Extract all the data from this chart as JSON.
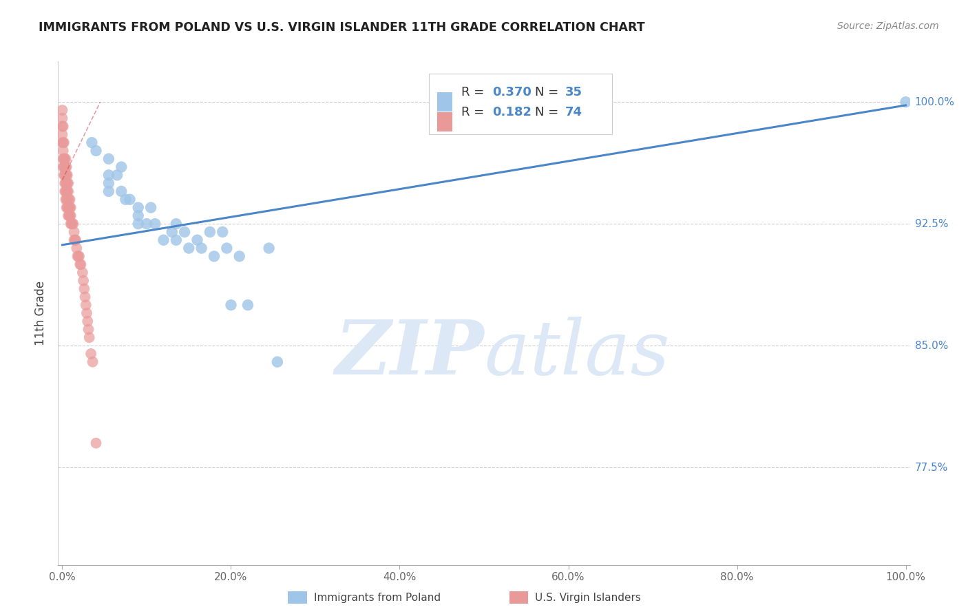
{
  "title": "IMMIGRANTS FROM POLAND VS U.S. VIRGIN ISLANDER 11TH GRADE CORRELATION CHART",
  "source": "Source: ZipAtlas.com",
  "ylabel": "11th Grade",
  "y_tick_labels": [
    "100.0%",
    "92.5%",
    "85.0%",
    "77.5%"
  ],
  "y_tick_values": [
    1.0,
    0.925,
    0.85,
    0.775
  ],
  "ylim": [
    0.715,
    1.025
  ],
  "xlim": [
    -0.005,
    1.005
  ],
  "color_blue": "#9fc5e8",
  "color_pink": "#ea9999",
  "color_line_blue": "#4a86c8",
  "color_line_pink": "#cc4444",
  "color_text_blue": "#4a86c8",
  "color_text_pink": "#cc4444",
  "color_grid": "#cccccc",
  "watermark_color": "#dce8f5",
  "blue_points_x": [
    0.035,
    0.04,
    0.055,
    0.07,
    0.055,
    0.065,
    0.055,
    0.055,
    0.07,
    0.075,
    0.08,
    0.09,
    0.09,
    0.09,
    0.1,
    0.105,
    0.11,
    0.12,
    0.13,
    0.135,
    0.135,
    0.145,
    0.15,
    0.16,
    0.165,
    0.175,
    0.18,
    0.19,
    0.195,
    0.2,
    0.21,
    0.22,
    0.245,
    0.255,
    1.0
  ],
  "blue_points_y": [
    0.975,
    0.97,
    0.965,
    0.96,
    0.955,
    0.955,
    0.95,
    0.945,
    0.945,
    0.94,
    0.94,
    0.935,
    0.93,
    0.925,
    0.925,
    0.935,
    0.925,
    0.915,
    0.92,
    0.925,
    0.915,
    0.92,
    0.91,
    0.915,
    0.91,
    0.92,
    0.905,
    0.92,
    0.91,
    0.875,
    0.905,
    0.875,
    0.91,
    0.84,
    1.0
  ],
  "pink_points_x": [
    0.0,
    0.0,
    0.0,
    0.0,
    0.0,
    0.001,
    0.001,
    0.001,
    0.001,
    0.001,
    0.002,
    0.002,
    0.002,
    0.002,
    0.003,
    0.003,
    0.003,
    0.003,
    0.003,
    0.004,
    0.004,
    0.004,
    0.004,
    0.004,
    0.004,
    0.005,
    0.005,
    0.005,
    0.005,
    0.005,
    0.005,
    0.006,
    0.006,
    0.006,
    0.006,
    0.006,
    0.007,
    0.007,
    0.007,
    0.007,
    0.008,
    0.008,
    0.008,
    0.009,
    0.009,
    0.009,
    0.01,
    0.01,
    0.01,
    0.011,
    0.012,
    0.013,
    0.014,
    0.014,
    0.015,
    0.016,
    0.017,
    0.018,
    0.019,
    0.02,
    0.021,
    0.022,
    0.024,
    0.025,
    0.026,
    0.027,
    0.028,
    0.029,
    0.03,
    0.031,
    0.032,
    0.034,
    0.036,
    0.04
  ],
  "pink_points_y": [
    0.995,
    0.99,
    0.985,
    0.98,
    0.975,
    0.985,
    0.975,
    0.97,
    0.965,
    0.96,
    0.975,
    0.965,
    0.96,
    0.955,
    0.965,
    0.96,
    0.955,
    0.95,
    0.945,
    0.965,
    0.96,
    0.955,
    0.95,
    0.945,
    0.94,
    0.96,
    0.955,
    0.95,
    0.945,
    0.94,
    0.935,
    0.955,
    0.95,
    0.945,
    0.94,
    0.935,
    0.95,
    0.945,
    0.935,
    0.93,
    0.94,
    0.935,
    0.93,
    0.94,
    0.935,
    0.93,
    0.935,
    0.93,
    0.925,
    0.925,
    0.925,
    0.925,
    0.92,
    0.915,
    0.915,
    0.915,
    0.91,
    0.905,
    0.905,
    0.905,
    0.9,
    0.9,
    0.895,
    0.89,
    0.885,
    0.88,
    0.875,
    0.87,
    0.865,
    0.86,
    0.855,
    0.845,
    0.84,
    0.79
  ],
  "blue_trend_x0": 0.0,
  "blue_trend_x1": 1.0,
  "blue_trend_y0": 0.912,
  "blue_trend_y1": 0.998,
  "pink_trend_x0": 0.0,
  "pink_trend_x1": 0.045,
  "pink_trend_y0": 0.952,
  "pink_trend_y1": 1.0,
  "x_ticks": [
    0.0,
    0.2,
    0.4,
    0.6,
    0.8,
    1.0
  ],
  "x_tick_labels": [
    "0.0%",
    "20.0%",
    "40.0%",
    "60.0%",
    "80.0%",
    "100.0%"
  ]
}
